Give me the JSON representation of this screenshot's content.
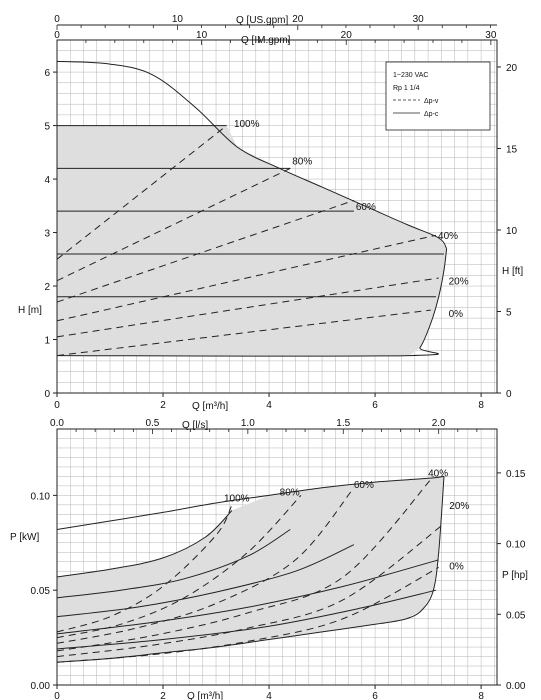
{
  "colors": {
    "grid": "#b4b4b4",
    "fill": "#dedede",
    "curve": "#222222",
    "background": "#ffffff"
  },
  "chart_data": [
    {
      "type": "line",
      "name": "head",
      "xlabel": "Q [m³/h]",
      "ylabel": "H [m]",
      "ylabel_right": "H [ft]",
      "top_axis_1_label": "Q [US.gpm]",
      "top_axis_2_label": "Q [IM.gpm]",
      "xlim": [
        0,
        8.3
      ],
      "ylim": [
        0,
        6.6
      ],
      "x_ticks": [
        "0",
        "2",
        "4",
        "6",
        "8"
      ],
      "y_ticks": [
        "0",
        "1",
        "2",
        "3",
        "4",
        "5",
        "6"
      ],
      "ft_ticks": [
        "0",
        "5",
        "10",
        "15",
        "20"
      ],
      "usgpm_ticks": [
        "0",
        "10",
        "20",
        "30"
      ],
      "imgpm_ticks": [
        "0",
        "10",
        "20",
        "30"
      ],
      "grid": true,
      "legend": {
        "position": "top-right",
        "title_lines": [
          "1~230 VAC",
          "Rp 1 1/4"
        ],
        "entries": [
          {
            "label": "Δp-v",
            "style": "dashed"
          },
          {
            "label": "Δp-c",
            "style": "solid"
          }
        ]
      },
      "max_curve": {
        "x": [
          0,
          1.0,
          1.8,
          2.6,
          3.4,
          4.2,
          5.0,
          5.8,
          6.6,
          7.2,
          7.35
        ],
        "y": [
          6.2,
          6.15,
          5.95,
          5.35,
          4.6,
          4.2,
          3.85,
          3.5,
          3.15,
          2.9,
          2.7
        ]
      },
      "min_curve": {
        "x": [
          0,
          6.65,
          6.85,
          7.05,
          7.2,
          7.3,
          7.35
        ],
        "y": [
          0.7,
          0.7,
          0.85,
          1.3,
          1.8,
          2.3,
          2.7
        ]
      },
      "constant_pressure": [
        {
          "label": "",
          "y": 5.0,
          "x_end": 3.2
        },
        {
          "label": "",
          "y": 4.2,
          "x_end": 4.4
        },
        {
          "label": "",
          "y": 3.4,
          "x_end": 5.6
        },
        {
          "label": "",
          "y": 2.6,
          "x_end": 7.3
        },
        {
          "label": "",
          "y": 1.8,
          "x_end": 7.15
        }
      ],
      "proportional_pressure": [
        {
          "label": "100%",
          "x": [
            0,
            3.2
          ],
          "y": [
            2.5,
            5.0
          ]
        },
        {
          "label": "80%",
          "x": [
            0,
            4.4
          ],
          "y": [
            2.1,
            4.2
          ]
        },
        {
          "label": "60%",
          "x": [
            0,
            5.6
          ],
          "y": [
            1.7,
            3.6
          ]
        },
        {
          "label": "40%",
          "x": [
            0,
            7.15
          ],
          "y": [
            1.35,
            2.95
          ]
        },
        {
          "label": "20%",
          "x": [
            0,
            7.2
          ],
          "y": [
            1.05,
            2.15
          ]
        },
        {
          "label": "0%",
          "x": [
            0,
            7.05
          ],
          "y": [
            0.7,
            1.55
          ]
        }
      ],
      "curve_label_positions": {
        "100%": [
          3.3,
          5.05
        ],
        "80%": [
          4.4,
          4.35
        ],
        "60%": [
          5.6,
          3.5
        ],
        "40%": [
          7.15,
          2.95
        ],
        "20%": [
          7.35,
          2.1
        ],
        "0%": [
          7.35,
          1.5
        ]
      }
    },
    {
      "type": "line",
      "name": "power",
      "xlabel": "Q [m³/h]",
      "ylabel": "P [kW]",
      "ylabel_right": "P [hp]",
      "top_axis_label": "Q [l/s]",
      "xlim": [
        0,
        8.3
      ],
      "ylim": [
        0,
        0.135
      ],
      "x_ticks": [
        "0",
        "2",
        "4",
        "6",
        "8"
      ],
      "y_ticks": [
        "0.00",
        "0.05",
        "0.10"
      ],
      "hp_ticks": [
        "0.00",
        "0.05",
        "0.10",
        "0.15"
      ],
      "ls_ticks": [
        "0.0",
        "0.5",
        "1.0",
        "1.5",
        "2.0"
      ],
      "grid": true,
      "max_curve": {
        "x": [
          0,
          1,
          2,
          3,
          4,
          5,
          6,
          7,
          7.3
        ],
        "y": [
          0.082,
          0.0865,
          0.091,
          0.096,
          0.1,
          0.104,
          0.107,
          0.109,
          0.11
        ]
      },
      "min_curve": {
        "x": [
          0,
          1,
          2,
          3,
          4,
          5,
          6,
          6.6,
          6.9,
          7.1,
          7.2,
          7.3
        ],
        "y": [
          0.012,
          0.014,
          0.017,
          0.02,
          0.024,
          0.028,
          0.032,
          0.035,
          0.04,
          0.05,
          0.07,
          0.11
        ]
      },
      "constant_pressure": [
        {
          "label": "",
          "x": [
            0,
            1,
            2,
            2.8,
            3.3
          ],
          "y": [
            0.057,
            0.061,
            0.067,
            0.078,
            0.092
          ]
        },
        {
          "label": "",
          "x": [
            0,
            1.2,
            2.4,
            3.6,
            4.4
          ],
          "y": [
            0.046,
            0.05,
            0.056,
            0.068,
            0.082
          ]
        },
        {
          "label": "",
          "x": [
            0,
            1.5,
            3,
            4.5,
            5.6
          ],
          "y": [
            0.036,
            0.041,
            0.049,
            0.06,
            0.074
          ]
        },
        {
          "label": "",
          "x": [
            0,
            1.8,
            3.6,
            5.4,
            7.2
          ],
          "y": [
            0.027,
            0.033,
            0.041,
            0.052,
            0.066
          ]
        },
        {
          "label": "",
          "x": [
            0,
            2,
            4,
            5.8,
            7.15
          ],
          "y": [
            0.019,
            0.024,
            0.031,
            0.041,
            0.05
          ]
        }
      ],
      "proportional_pressure": [
        {
          "label": "100%",
          "x": [
            0,
            1,
            2,
            3,
            3.3
          ],
          "y": [
            0.028,
            0.036,
            0.052,
            0.079,
            0.095
          ]
        },
        {
          "label": "80%",
          "x": [
            0,
            1.2,
            2.4,
            3.6,
            4.6
          ],
          "y": [
            0.025,
            0.032,
            0.046,
            0.07,
            0.1
          ]
        },
        {
          "label": "60%",
          "x": [
            0,
            1.5,
            3,
            4.5,
            5.6
          ],
          "y": [
            0.022,
            0.03,
            0.043,
            0.066,
            0.104
          ]
        },
        {
          "label": "40%",
          "x": [
            0,
            1.8,
            3.6,
            5.4,
            7.1
          ],
          "y": [
            0.018,
            0.026,
            0.038,
            0.057,
            0.11
          ]
        },
        {
          "label": "20%",
          "x": [
            0,
            1.8,
            3.6,
            5.4,
            7.3
          ],
          "y": [
            0.015,
            0.021,
            0.03,
            0.045,
            0.085
          ]
        },
        {
          "label": "0%",
          "x": [
            0,
            1.8,
            3.6,
            5.4,
            7.2
          ],
          "y": [
            0.012,
            0.016,
            0.023,
            0.035,
            0.062
          ]
        }
      ],
      "curve_label_positions": {
        "100%": [
          3.15,
          0.099
        ],
        "80%": [
          4.2,
          0.102
        ],
        "60%": [
          5.6,
          0.106
        ],
        "40%": [
          7.0,
          0.112
        ],
        "20%": [
          7.4,
          0.095
        ],
        "0%": [
          7.4,
          0.063
        ]
      }
    }
  ]
}
